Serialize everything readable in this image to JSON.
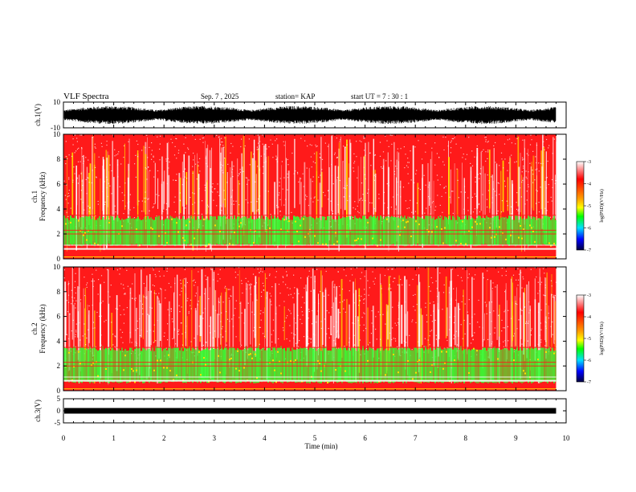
{
  "chart_data": {
    "type": "heatmap",
    "header": {
      "title": "VLF Spectra",
      "date": "Sep. 7  , 2025",
      "station": "station= KAP",
      "start": "start  UT  =   7 : 30 : 1"
    },
    "x_axis": {
      "label": "Time  (min)",
      "range": [
        0,
        10
      ],
      "ticks": [
        "0",
        "1",
        "2",
        "3",
        "4",
        "5",
        "6",
        "7",
        "8",
        "9",
        "10"
      ],
      "data_end": 9.8
    },
    "panels": [
      {
        "id": "ch1-waveform",
        "kind": "waveform",
        "ylabel": "ch.1(V)",
        "ylim": [
          -10,
          10
        ],
        "ticks": [
          "10",
          "-10"
        ],
        "amplitude": 7
      },
      {
        "id": "ch1-spectrogram",
        "kind": "spectrogram",
        "ylabel_lines": [
          "ch.1",
          "Frequency  (kHz)"
        ],
        "ylim": [
          0,
          10
        ],
        "ticks": [
          "0",
          "2",
          "4",
          "6",
          "8",
          "10"
        ],
        "green_band_khz": [
          1.0,
          3.5
        ],
        "colorbar": {
          "ticks": [
            "-3",
            "-4",
            "-5",
            "-6",
            "-7"
          ],
          "range": [
            -7,
            -3
          ],
          "label": "log(PSD)(V²/Hz)"
        }
      },
      {
        "id": "ch2-spectrogram",
        "kind": "spectrogram",
        "ylabel_lines": [
          "ch.2",
          "Frequency  (kHz)"
        ],
        "ylim": [
          0,
          10
        ],
        "ticks": [
          "0",
          "2",
          "4",
          "6",
          "8",
          "10"
        ],
        "green_band_khz": [
          0.6,
          3.6
        ],
        "colorbar": {
          "ticks": [
            "-3",
            "-4",
            "-5",
            "-6",
            "-7"
          ],
          "range": [
            -7,
            -3
          ],
          "label": "log(PSD)(V²/Hz)"
        }
      },
      {
        "id": "ch3-waveform",
        "kind": "flatline",
        "ylabel": "ch.3(V)",
        "ylim": [
          -5,
          5
        ],
        "ticks": [
          "5",
          "0",
          "-5"
        ],
        "level": 0
      }
    ],
    "colors": {
      "red": "#ff1a1a",
      "white": "#ffffff",
      "yellow": "#ffe000",
      "green": "#33ff33",
      "axis": "#000000"
    }
  }
}
